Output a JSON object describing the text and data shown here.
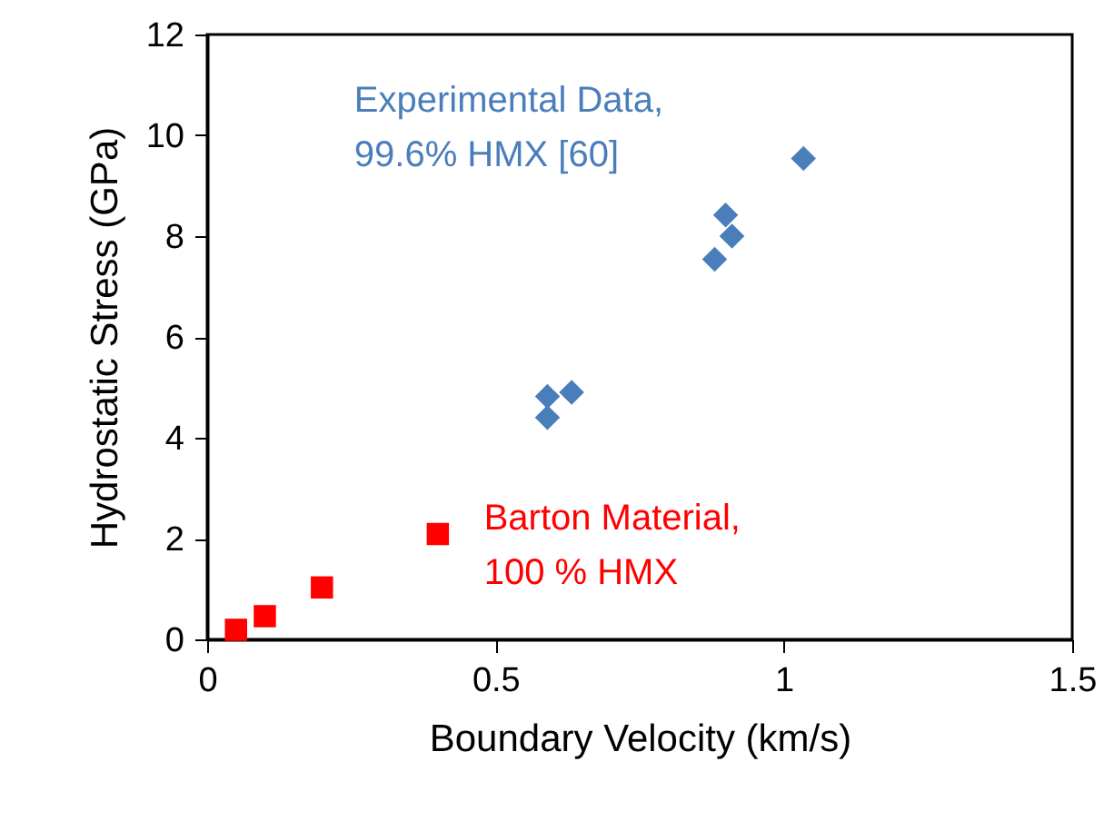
{
  "chart_data": {
    "type": "scatter",
    "xlabel": "Boundary Velocity (km/s)",
    "ylabel": "Hydrostatic Stress (GPa)",
    "xlim": [
      0,
      1.5
    ],
    "xticks": [
      0,
      0.5,
      1,
      1.5
    ],
    "ylim": [
      0,
      12
    ],
    "yticks": [
      0,
      2,
      4,
      6,
      8,
      10,
      12
    ],
    "grid": false,
    "series": [
      {
        "name": "Experimental Data,\n99.6% HMX [60]",
        "color": "#4a7ebb",
        "marker": "diamond",
        "x": [
          1.034,
          0.899,
          0.91,
          0.88,
          0.59,
          0.632,
          0.59
        ],
        "values": [
          9.54,
          8.42,
          8.0,
          7.54,
          4.82,
          4.9,
          4.4
        ]
      },
      {
        "name": "Barton Material,\n100 % HMX",
        "color": "#ff0000",
        "marker": "square",
        "x": [
          0.05,
          0.1,
          0.199,
          0.4
        ],
        "values": [
          0.19,
          0.46,
          1.03,
          2.09
        ]
      }
    ]
  }
}
